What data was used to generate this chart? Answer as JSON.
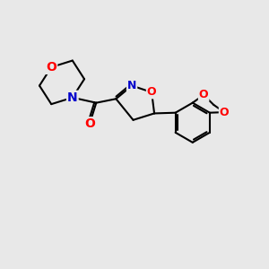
{
  "background_color": "#e8e8e8",
  "bond_color": "#000000",
  "bond_width": 1.5,
  "atom_colors": {
    "O": "#ff0000",
    "N": "#0000cc",
    "C": "#000000"
  },
  "font_size": 10,
  "fig_size": [
    3.0,
    3.0
  ],
  "dpi": 100
}
